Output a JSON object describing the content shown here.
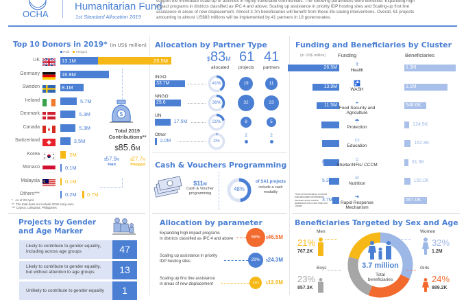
{
  "header": {
    "org": "OCHA",
    "fund_title": "Humanitarian Fund",
    "subtitle": "1st Standard Allocation 2019",
    "summary_lines": [
      "support the immediate scale-up of activities in highly vulnerable communities. The following parameters were identified: Expanding high",
      "impact programs in districts classified as IPC 4 and above; Scaling up assistance in priority IDP hosting sites and Scaling-up first line",
      "assistance in areas of new displacement. Almost 3.7m beneficiaries will benefit from these life-saving interventions. Overall, 61 projects",
      "amounting to almost US$83 millions will be implemented by 41 partners in 18 governorates."
    ]
  },
  "donors": {
    "title": "Top 10 Donors in 2019*",
    "unit": "(in US$ million)",
    "legend": {
      "paid": "Paid",
      "pledged": "Pledged"
    },
    "colors": {
      "paid": "#4a7fd4",
      "pledged": "#f6b817"
    },
    "rows": [
      {
        "name": "UK",
        "paid": 13.1,
        "pledged": 25.5,
        "paid_label": "13.1M",
        "pledged_label": "25.5M",
        "flag": "uk"
      },
      {
        "name": "Germany",
        "paid": 16.9,
        "pledged": 0,
        "paid_label": "16.9M",
        "pledged_label": "",
        "flag": "de"
      },
      {
        "name": "Sweden",
        "paid": 8.1,
        "pledged": 0,
        "paid_label": "8.1M",
        "pledged_label": "",
        "flag": "se"
      },
      {
        "name": "Ireland",
        "paid": 5.7,
        "pledged": 0,
        "paid_label": "5.7M",
        "pledged_label": "",
        "flag": "ie"
      },
      {
        "name": "Denmark",
        "paid": 5.3,
        "pledged": 0,
        "paid_label": "5.3M",
        "pledged_label": "",
        "flag": "dk"
      },
      {
        "name": "Canada",
        "paid": 5.3,
        "pledged": 0,
        "paid_label": "5.3M",
        "pledged_label": "",
        "flag": "ca"
      },
      {
        "name": "Switzerland",
        "paid": 3.5,
        "pledged": 0,
        "paid_label": "3.5M",
        "pledged_label": "",
        "flag": "ch"
      },
      {
        "name": "Korea",
        "paid": 0,
        "pledged": 2,
        "paid_label": "",
        "pledged_label": "2M",
        "flag": "kr"
      },
      {
        "name": "Monaco",
        "paid": 0.1,
        "pledged": 0,
        "paid_label": "0.1M",
        "pledged_label": "",
        "flag": "mc"
      },
      {
        "name": "Malaysia",
        "paid": 0,
        "pledged": 0.1,
        "paid_label": "",
        "pledged_label": "0.1M",
        "flag": "my"
      },
      {
        "name": "Others***",
        "paid": 0.2,
        "pledged": 0.7,
        "paid_label": "0.2M",
        "pledged_label": "0.7M",
        "flag": ""
      }
    ],
    "total_label": "Total 2019 Contributions**",
    "total_value": "85.6",
    "total_paid": "57.9",
    "total_pledged": "27.7",
    "paid_word": "Paid",
    "pledged_word": "Pledged",
    "currency": "$",
    "unit_m": "M",
    "footnotes": [
      "*   As of 23 April.",
      "**  The total does not include 2018 carry-over.",
      "*** Cyprus, Lithuania, Philippines"
    ]
  },
  "partner": {
    "title": "Allocation by Partner Type",
    "allocated_value": "83",
    "allocated_label": "allocated",
    "projects_value": "61",
    "projects_label": "projects",
    "partners_value": "41",
    "partners_label": "partners",
    "rows": [
      {
        "type": "INGO",
        "amount": 33.7,
        "amount_label": "33.7M",
        "percent": 41,
        "percent_label": "41%",
        "projects": 19,
        "partners": 11
      },
      {
        "type": "NNGO",
        "amount": 29.6,
        "amount_label": "29.6",
        "percent": 36,
        "percent_label": "36%",
        "projects": 32,
        "partners": 23
      },
      {
        "type": "UN",
        "amount": 17.5,
        "amount_label": "17.5M",
        "percent": 21,
        "percent_label": "21%",
        "projects": 8,
        "partners": 5
      },
      {
        "type": "Other",
        "amount": 2.0,
        "amount_label": "2.0M",
        "percent": 2,
        "percent_label": "2%",
        "projects": 2,
        "partners": 2
      }
    ]
  },
  "cash": {
    "title": "Cash & Vouchers Programming",
    "amount": "11",
    "amount_desc": "Cash & Voucher programming",
    "percent": 48,
    "percent_label": "48%",
    "percent_title": "of SA1 projects",
    "percent_desc": "include a cash modality"
  },
  "cluster": {
    "title": "Funding and Beneficiaries by Cluster",
    "unit": "(in US$ million)",
    "funding_header": "Funding",
    "beneficiaries_header": "Beneficiaries",
    "rows": [
      {
        "name": "Health",
        "funding": 26.5,
        "funding_label": "26.5M",
        "beneficiaries": 1300000,
        "beneficiaries_label": "1.3M",
        "icon": "health-icon"
      },
      {
        "name": "WASH",
        "funding": 13.9,
        "funding_label": "13.9M",
        "beneficiaries": 1100000,
        "beneficiaries_label": "1.1M",
        "icon": "water-tap-icon"
      },
      {
        "name": "Food Security and Agriculture",
        "funding": 11.5,
        "funding_label": "11.5M",
        "beneficiaries": 548600,
        "beneficiaries_label": "548.6K",
        "icon": "food-bowl-icon"
      },
      {
        "name": "Protection",
        "funding": 9.3,
        "funding_label": "9.3M",
        "beneficiaries": 124500,
        "beneficiaries_label": "124.5K",
        "icon": "protection-icon"
      },
      {
        "name": "Education",
        "funding": 8.7,
        "funding_label": "8.7M",
        "beneficiaries": 162800,
        "beneficiaries_label": "162.8K",
        "icon": "book-icon"
      },
      {
        "name": "Shelter/NFIs/ CCCM",
        "funding": 8.1,
        "funding_label": "8.1M",
        "beneficiaries": 81900,
        "beneficiaries_label": "81.9K",
        "icon": "shelter-icon"
      },
      {
        "name": "Nutrition",
        "funding": 5.3,
        "funding_label": "5.3M",
        "beneficiaries": 150000,
        "beneficiaries_label": "150.0K",
        "icon": "nutrition-icon"
      },
      {
        "name": "Rapid Response Mechanism",
        "funding": 3.7,
        "funding_label": "3.7M",
        "beneficiaries": 567000,
        "beneficiaries_label": "567.0K",
        "icon": "arrow-right-icon"
      }
    ],
    "footnote": "*Sum of beneficiaries exceeds total allocation beneficiaries because some receive assistance from more than one Cluster"
  },
  "gender": {
    "title_line1": "Projects by Gender",
    "title_line2": "and Age Marker",
    "rows": [
      {
        "text1": "Likely to contribute to gender equality,",
        "text2": "including across age groups",
        "count": "47"
      },
      {
        "text1": "Likely to contribute to gender equality,",
        "text2": "but without attention to age groups",
        "count": "13"
      },
      {
        "text1": "Unlikely to contribute to gender equality",
        "text2": "",
        "count": "1"
      }
    ]
  },
  "parameter": {
    "title": "Allocation by parameter",
    "rows": [
      {
        "text1": "Expanding high impact programs",
        "text2": "in districts classified as IPC 4 and above",
        "percent": 56,
        "percent_label": "56%",
        "amount": "46.5M",
        "color": "#f26a2e"
      },
      {
        "text1": "Scaling up assistance in priority",
        "text2": "IDP hosting sites",
        "percent": 29,
        "percent_label": "29%",
        "amount": "24.3M",
        "color": "#4a7fd4"
      },
      {
        "text1": "Scaling-up first line assistance",
        "text2": "in areas of new displacement",
        "percent": 14,
        "percent_label": "14%",
        "amount": "12.0M",
        "color": "#f6b817"
      }
    ]
  },
  "sexage": {
    "title": "Beneficiaries Targeted by Sex and Age",
    "total_value": "3.7 million",
    "total_label1": "Total",
    "total_label2": "beneficiaries",
    "groups": [
      {
        "name": "Men",
        "percent": 21,
        "percent_label": "21%",
        "count": "767.2K",
        "color": "#f6b817"
      },
      {
        "name": "Women",
        "percent": 32,
        "percent_label": "32%",
        "count": "1.2M",
        "color": "#9db7e6"
      },
      {
        "name": "Boys",
        "percent": 23,
        "percent_label": "23%",
        "count": "857.3K",
        "color": "#a6a6a6"
      },
      {
        "name": "Girls",
        "percent": 24,
        "percent_label": "24%",
        "count": "889.2K",
        "color": "#f26a2e"
      }
    ]
  }
}
